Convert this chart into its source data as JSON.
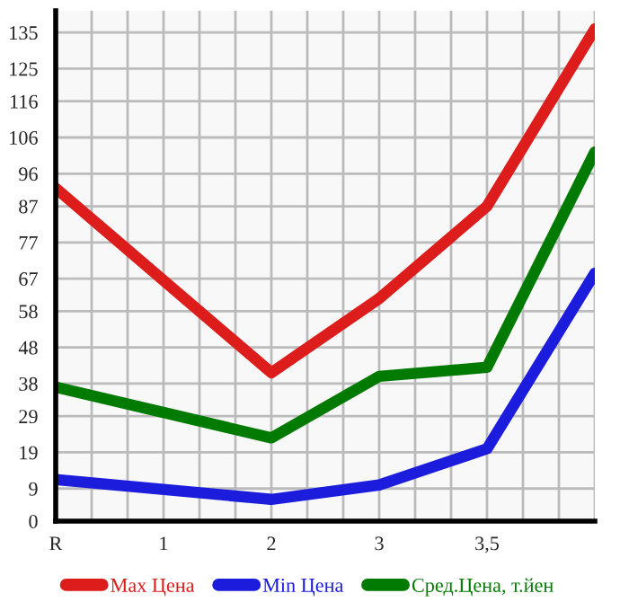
{
  "chart_data": {
    "type": "line",
    "categories": [
      "R",
      "1",
      "2",
      "3",
      "3,5",
      null
    ],
    "series": [
      {
        "name": "Max Цена",
        "color": "#dd1c1c",
        "values": [
          92,
          null,
          41,
          61.5,
          87,
          136
        ]
      },
      {
        "name": "Min Цена",
        "color": "#1c1cdd",
        "values": [
          11.5,
          null,
          6,
          10,
          20,
          68.5
        ]
      },
      {
        "name": "Сред.Цена, т.йен",
        "color": "#007a00",
        "values": [
          37,
          null,
          23,
          40,
          42.5,
          102
        ]
      }
    ],
    "ylim": [
      0,
      141
    ],
    "yticks": [
      0,
      9,
      19,
      29,
      38,
      48,
      58,
      67,
      77,
      87,
      96,
      106,
      116,
      125,
      135
    ],
    "grid": true,
    "legend": "bottom",
    "marker": "none",
    "line_style": "solid"
  }
}
